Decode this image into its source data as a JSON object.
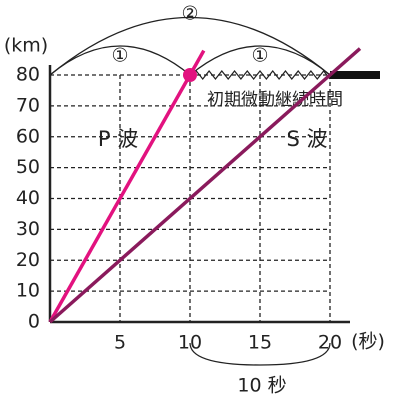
{
  "chart_data": {
    "type": "line",
    "x_label": "(秒)",
    "y_label": "(km)",
    "xlim": [
      0,
      20
    ],
    "ylim": [
      0,
      80
    ],
    "xticks": [
      5,
      10,
      15,
      20
    ],
    "yticks": [
      0,
      10,
      20,
      30,
      40,
      50,
      60,
      70,
      80
    ],
    "grid": true,
    "series": [
      {
        "name": "P 波",
        "color": "#e2127f",
        "x": [
          0,
          10
        ],
        "values": [
          0,
          80
        ]
      },
      {
        "name": "S 波",
        "color": "#8a1a5c",
        "x": [
          0,
          20
        ],
        "values": [
          0,
          80
        ]
      }
    ],
    "annotations": {
      "duration": "初期微動継続時間",
      "arc_1a": "①",
      "arc_1b": "①",
      "arc_2": "②",
      "interval": "10 秒"
    }
  }
}
